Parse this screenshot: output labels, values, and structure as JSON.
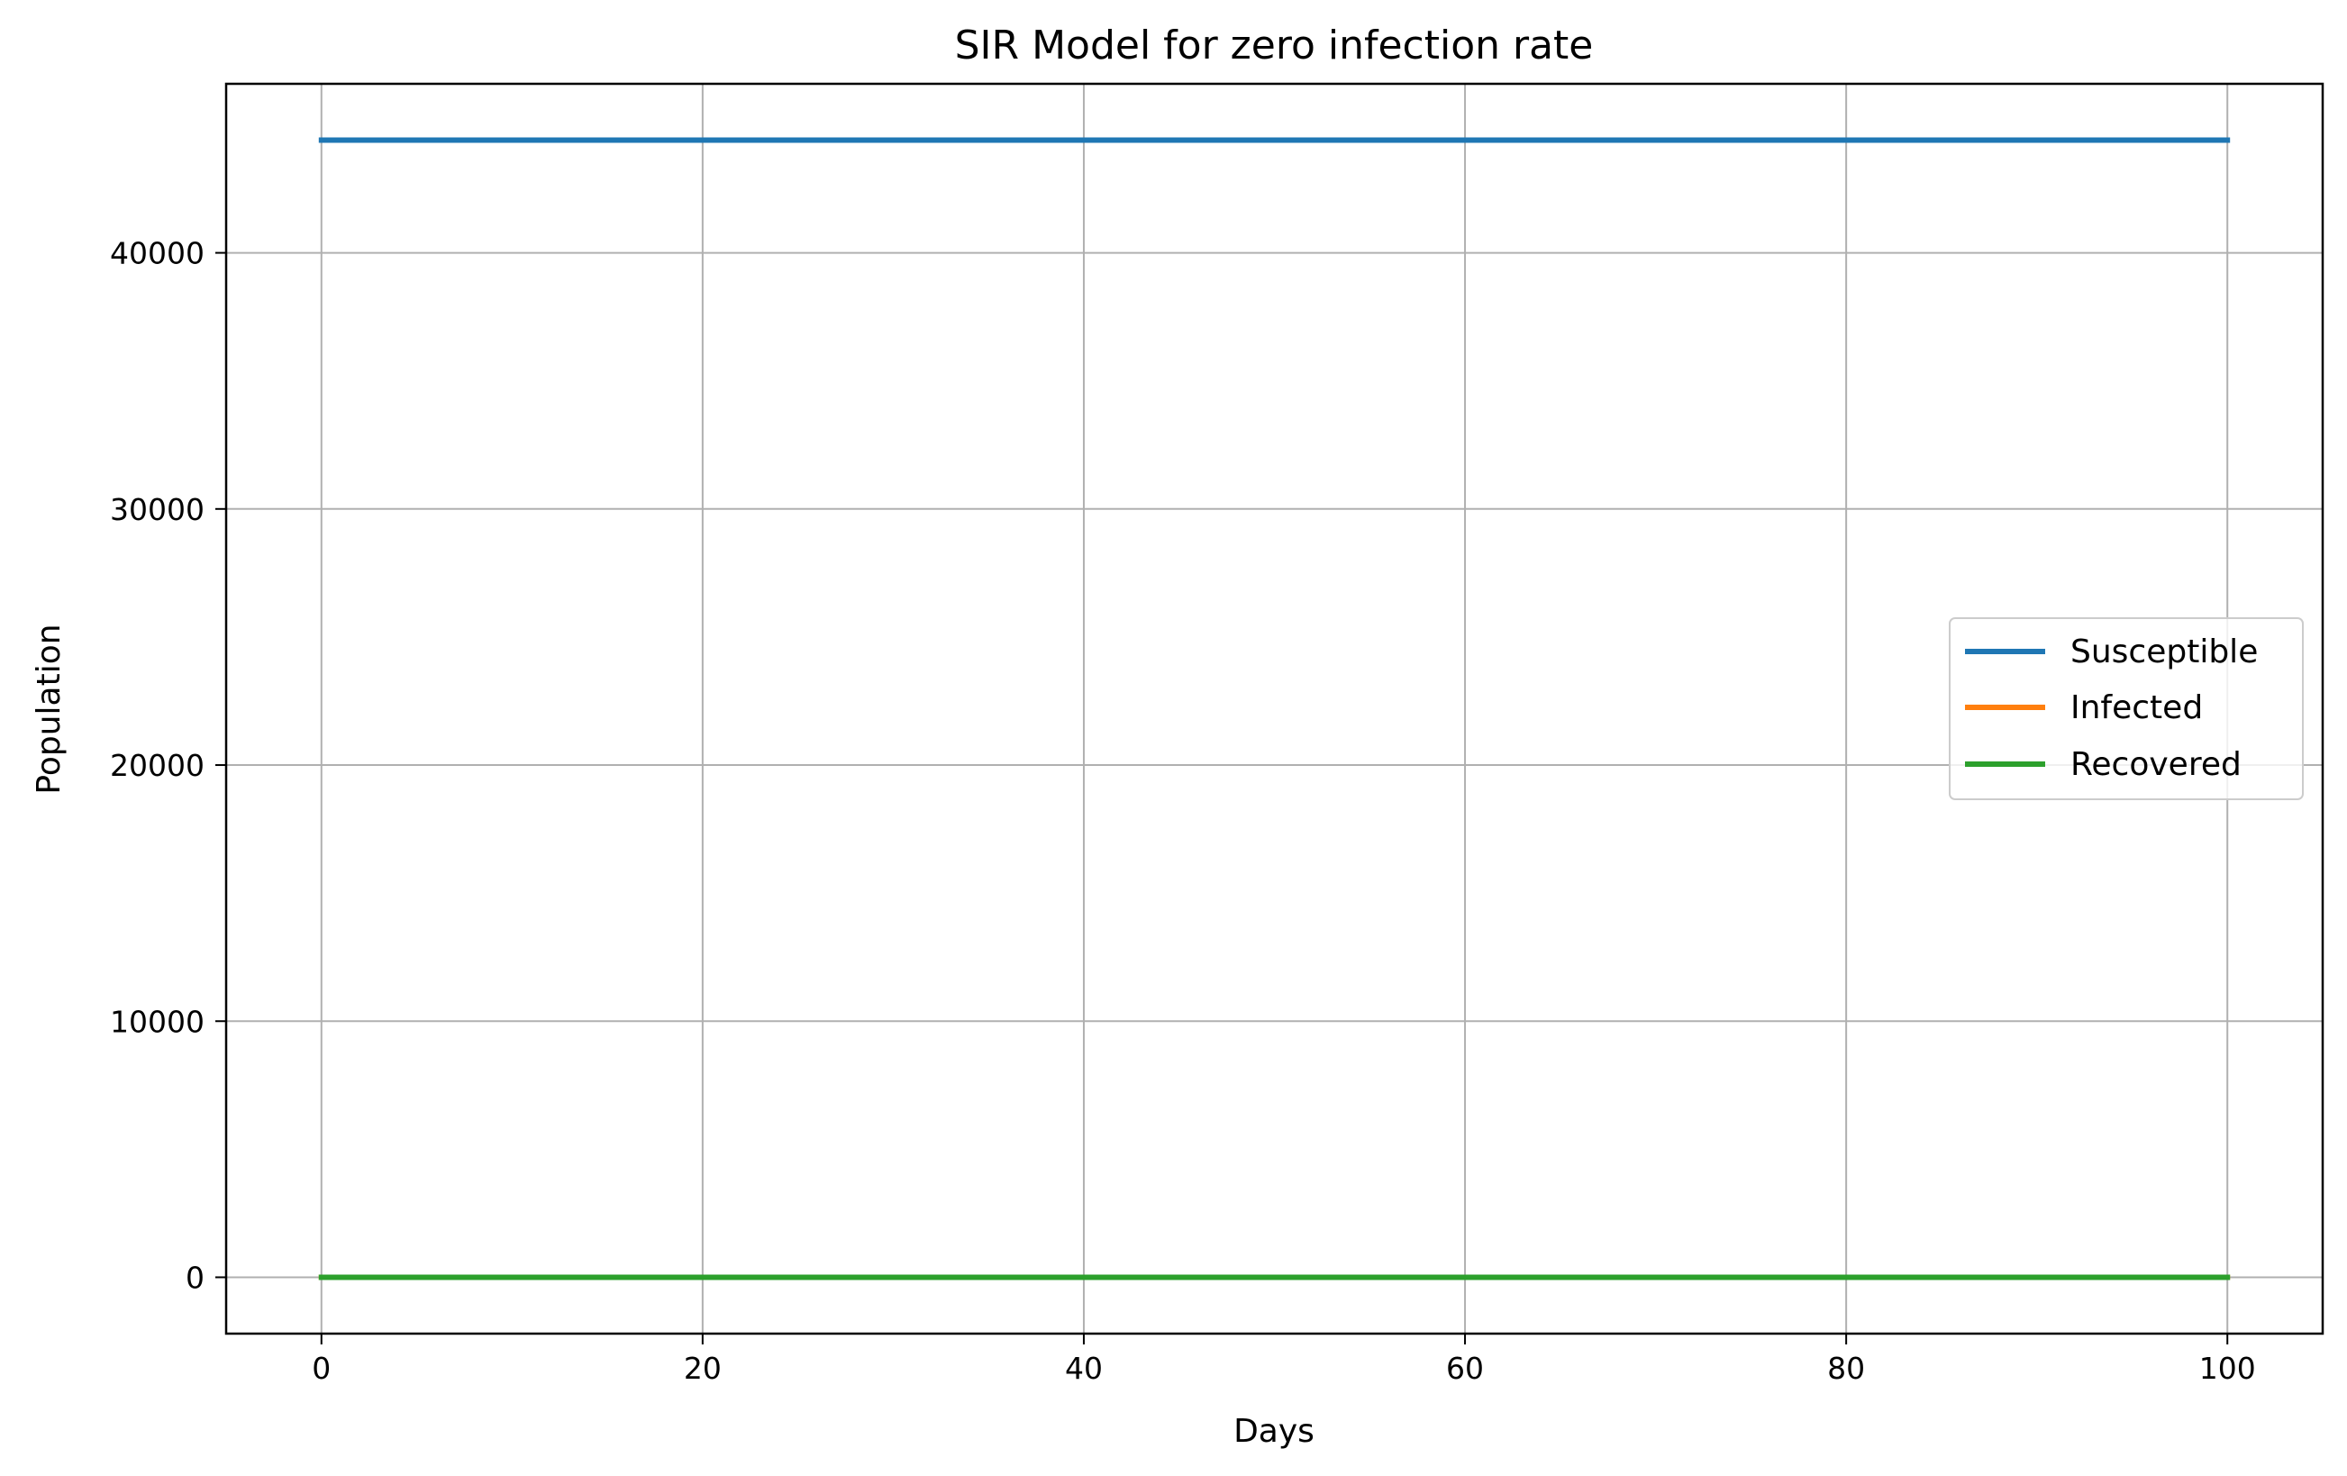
{
  "chart_data": {
    "type": "line",
    "title": "SIR Model for zero infection rate",
    "xlabel": "Days",
    "ylabel": "Population",
    "xlim": [
      -5,
      105
    ],
    "ylim": [
      -2200,
      46600
    ],
    "xticks": [
      0,
      20,
      40,
      60,
      80,
      100
    ],
    "yticks": [
      0,
      10000,
      20000,
      30000,
      40000
    ],
    "grid": true,
    "legend_position": "center-right",
    "series": [
      {
        "name": "Susceptible",
        "color": "#1f77b4",
        "x": [
          0,
          100
        ],
        "y": [
          44400,
          44400
        ]
      },
      {
        "name": "Infected",
        "color": "#ff7f0e",
        "x": [
          0,
          100
        ],
        "y": [
          0,
          0
        ]
      },
      {
        "name": "Recovered",
        "color": "#2ca02c",
        "x": [
          0,
          100
        ],
        "y": [
          0,
          0
        ]
      }
    ]
  }
}
